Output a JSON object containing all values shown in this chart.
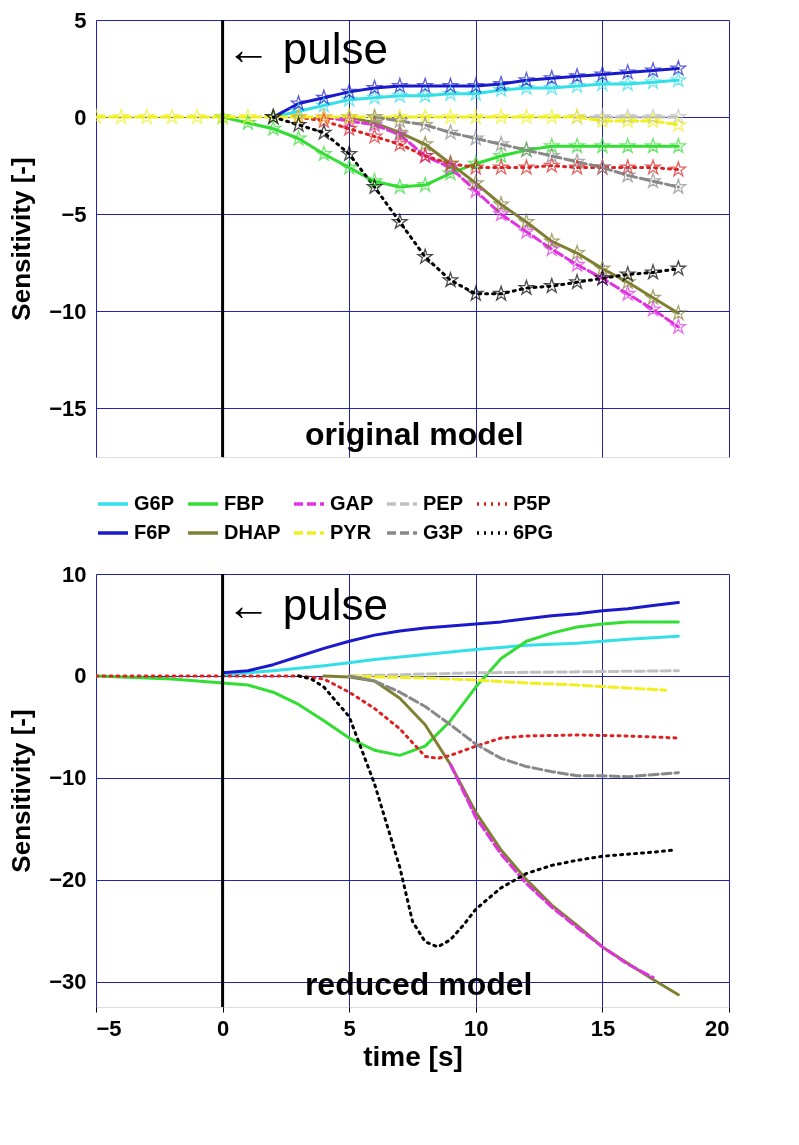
{
  "chart_data": [
    {
      "type": "line",
      "annotations": [
        {
          "text": "← pulse",
          "x": 0,
          "y": 3.6
        },
        "original model"
      ],
      "ylabel": "Sensitivity [-]",
      "xlim": [
        -5,
        20
      ],
      "xticks": [
        -5,
        0,
        5,
        10,
        15,
        20
      ],
      "ylim": [
        -17.5,
        5
      ],
      "yticks": [
        5,
        0,
        -5,
        -10,
        -15
      ],
      "tick_labels": "y",
      "grid": true,
      "legend": "bottom",
      "marker": "star",
      "ref_lines": [
        {
          "axis": "x",
          "value": 0,
          "color": "#000000"
        }
      ],
      "x": [
        -5,
        -4,
        -3,
        -2,
        -1,
        0,
        1,
        2,
        3,
        4,
        5,
        6,
        7,
        8,
        9,
        10,
        11,
        12,
        13,
        14,
        15,
        16,
        17,
        18
      ],
      "series": [
        {
          "name": "G6P",
          "color": "#33e0e8",
          "line_style": "solid",
          "values": [
            null,
            null,
            null,
            null,
            null,
            null,
            null,
            0,
            0.3,
            0.6,
            0.9,
            1.0,
            1.1,
            1.1,
            1.2,
            1.2,
            1.4,
            1.5,
            1.5,
            1.6,
            1.7,
            1.7,
            1.8,
            1.9
          ]
        },
        {
          "name": "FBP",
          "color": "#33dd33",
          "line_style": "solid",
          "values": [
            null,
            null,
            null,
            null,
            null,
            0,
            -0.3,
            -0.6,
            -1.1,
            -1.9,
            -2.6,
            -3.3,
            -3.6,
            -3.5,
            -2.9,
            -2.4,
            -2.0,
            -1.7,
            -1.5,
            -1.5,
            -1.5,
            -1.5,
            -1.5,
            -1.5
          ]
        },
        {
          "name": "GAP",
          "color": "#e033e0",
          "line_style": "dashed",
          "values": [
            null,
            null,
            null,
            null,
            null,
            null,
            null,
            null,
            null,
            0,
            -0.2,
            -0.4,
            -0.9,
            -2.0,
            -2.6,
            -3.8,
            -5.0,
            -5.9,
            -6.8,
            -7.6,
            -8.3,
            -9.1,
            -9.9,
            -10.8
          ]
        },
        {
          "name": "PEP",
          "color": "#c0c0c0",
          "line_style": "dashed",
          "values": [
            null,
            null,
            null,
            null,
            null,
            null,
            null,
            null,
            null,
            null,
            null,
            null,
            null,
            null,
            null,
            null,
            null,
            null,
            null,
            0,
            0,
            0,
            0,
            0
          ]
        },
        {
          "name": "P5P",
          "color": "#dd2222",
          "line_style": "dotted",
          "values": [
            null,
            null,
            null,
            null,
            null,
            null,
            null,
            null,
            0,
            -0.2,
            -0.6,
            -1.0,
            -1.4,
            -2.0,
            -2.4,
            -2.6,
            -2.6,
            -2.6,
            -2.5,
            -2.6,
            -2.6,
            -2.6,
            -2.6,
            -2.7
          ]
        },
        {
          "name": "F6P",
          "color": "#1a1acc",
          "line_style": "solid",
          "values": [
            null,
            null,
            null,
            null,
            null,
            null,
            null,
            0,
            0.7,
            1.0,
            1.3,
            1.5,
            1.6,
            1.6,
            1.6,
            1.6,
            1.7,
            1.9,
            2.0,
            2.1,
            2.2,
            2.3,
            2.4,
            2.5
          ]
        },
        {
          "name": "DHAP",
          "color": "#808033",
          "line_style": "solid",
          "values": [
            null,
            null,
            null,
            null,
            null,
            null,
            null,
            null,
            null,
            null,
            0,
            -0.3,
            -0.8,
            -1.4,
            -2.4,
            -3.4,
            -4.5,
            -5.4,
            -6.4,
            -7.0,
            -7.8,
            -8.5,
            -9.3,
            -10.1
          ]
        },
        {
          "name": "PYR",
          "color": "#f0f020",
          "line_style": "dashed",
          "values": [
            0,
            0,
            0,
            0,
            0,
            0,
            0,
            0,
            0,
            0,
            0,
            0,
            0,
            0,
            0,
            0,
            0,
            0,
            0,
            0,
            -0.2,
            -0.2,
            -0.2,
            -0.4
          ]
        },
        {
          "name": "G3P",
          "color": "#888888",
          "line_style": "dashed",
          "values": [
            null,
            null,
            null,
            null,
            null,
            null,
            null,
            null,
            null,
            null,
            null,
            0,
            -0.2,
            -0.4,
            -0.8,
            -1.1,
            -1.4,
            -1.7,
            -2.0,
            -2.3,
            -2.6,
            -3.0,
            -3.3,
            -3.6
          ]
        },
        {
          "name": "6PG",
          "color": "#000000",
          "line_style": "dotted",
          "values": [
            null,
            null,
            null,
            null,
            null,
            null,
            null,
            0,
            -0.4,
            -0.8,
            -1.9,
            -3.6,
            -5.4,
            -7.2,
            -8.4,
            -9.1,
            -9.1,
            -8.8,
            -8.7,
            -8.5,
            -8.3,
            -8.1,
            -8.0,
            -7.8
          ]
        }
      ]
    },
    {
      "type": "line",
      "annotations": [
        {
          "text": "← pulse",
          "x": 0,
          "y": 7.2
        },
        "reduced model"
      ],
      "xlabel": "time [s]",
      "ylabel": "Sensitivity [-]",
      "xlim": [
        -5,
        20
      ],
      "xticks": [
        -5,
        0,
        5,
        10,
        15,
        20
      ],
      "ylim": [
        -32.5,
        10
      ],
      "yticks": [
        10,
        0,
        -10,
        -20,
        -30
      ],
      "grid": true,
      "legend": false,
      "ref_lines": [
        {
          "axis": "x",
          "value": 0,
          "color": "#000000"
        }
      ],
      "series": [
        {
          "color": "#33e0e8",
          "line_style": "solid",
          "x": [
            0,
            2,
            4,
            5,
            6,
            8,
            10,
            12,
            14,
            16,
            18
          ],
          "values": [
            0.1,
            0.5,
            1.0,
            1.3,
            1.6,
            2.1,
            2.6,
            3.0,
            3.2,
            3.6,
            3.9
          ]
        },
        {
          "color": "#33dd33",
          "line_style": "solid",
          "x": [
            -5,
            -2,
            0,
            1,
            2,
            3,
            4,
            5,
            6,
            7,
            8,
            9,
            10,
            11,
            12,
            13,
            14,
            15,
            16,
            17,
            18
          ],
          "values": [
            0,
            -0.3,
            -0.7,
            -0.9,
            -1.6,
            -2.8,
            -4.4,
            -6.1,
            -7.3,
            -7.8,
            -6.9,
            -4.4,
            -1.1,
            1.7,
            3.4,
            4.2,
            4.8,
            5.1,
            5.3,
            5.3,
            5.3
          ]
        },
        {
          "color": "#e033e0",
          "line_style": "dashed",
          "x": [
            9,
            10,
            11,
            12,
            13,
            14,
            15,
            16,
            17
          ],
          "values": [
            -8.7,
            -13.9,
            -17.5,
            -20.4,
            -22.7,
            -24.7,
            -26.6,
            -28.3,
            -29.6
          ]
        },
        {
          "color": "#c0c0c0",
          "line_style": "dashed",
          "x": [
            5,
            10,
            14,
            18
          ],
          "values": [
            0,
            0.3,
            0.4,
            0.5
          ]
        },
        {
          "color": "#dd2222",
          "line_style": "dotted",
          "x": [
            -5,
            0,
            3,
            4,
            5,
            6,
            7,
            8,
            8.5,
            9,
            10,
            11,
            12,
            14,
            16,
            18
          ],
          "values": [
            0,
            0,
            0,
            -0.3,
            -1.6,
            -3.2,
            -5.2,
            -7.9,
            -8.1,
            -7.8,
            -6.9,
            -6.1,
            -5.9,
            -5.8,
            -5.9,
            -6.1
          ]
        },
        {
          "color": "#1a1acc",
          "line_style": "solid",
          "x": [
            0,
            1,
            2,
            3,
            4,
            5,
            6,
            7,
            8,
            9,
            10,
            11,
            12,
            13,
            14,
            15,
            16,
            17,
            18
          ],
          "values": [
            0.3,
            0.5,
            1.1,
            1.9,
            2.7,
            3.4,
            4.0,
            4.4,
            4.7,
            4.9,
            5.1,
            5.3,
            5.6,
            5.9,
            6.1,
            6.4,
            6.6,
            6.9,
            7.2
          ]
        },
        {
          "color": "#808033",
          "line_style": "solid",
          "x": [
            4,
            5,
            6,
            7,
            8,
            9,
            10,
            11,
            12,
            13,
            14,
            15,
            16,
            17,
            18
          ],
          "values": [
            0,
            -0.1,
            -0.5,
            -2.2,
            -4.8,
            -8.7,
            -13.4,
            -17.1,
            -20.0,
            -22.5,
            -24.5,
            -26.6,
            -28.2,
            -29.8,
            -31.3
          ]
        },
        {
          "color": "#f0f020",
          "line_style": "dashed",
          "x": [
            5,
            6,
            8,
            10,
            12,
            14,
            17.5
          ],
          "values": [
            0,
            -0.1,
            -0.2,
            -0.4,
            -0.7,
            -0.9,
            -1.4
          ]
        },
        {
          "color": "#888888",
          "line_style": "dashed",
          "x": [
            5,
            6,
            7,
            8,
            9,
            10,
            11,
            12,
            13,
            14,
            15,
            16,
            17,
            18
          ],
          "values": [
            0,
            -0.5,
            -1.6,
            -3.0,
            -4.8,
            -6.7,
            -8.1,
            -8.9,
            -9.4,
            -9.8,
            -9.8,
            -9.9,
            -9.7,
            -9.5
          ]
        },
        {
          "color": "#000000",
          "line_style": "dotted",
          "x": [
            3,
            3.5,
            4,
            5,
            6,
            7,
            7.5,
            8,
            8.5,
            9,
            9.5,
            10,
            11,
            12,
            13,
            14,
            15,
            16,
            17,
            17.8
          ],
          "values": [
            0,
            -0.3,
            -1.1,
            -4.0,
            -10.6,
            -18.8,
            -24.1,
            -26.1,
            -26.6,
            -25.9,
            -24.5,
            -22.9,
            -20.8,
            -19.4,
            -18.6,
            -18.1,
            -17.7,
            -17.5,
            -17.3,
            -17.1
          ]
        }
      ]
    }
  ]
}
